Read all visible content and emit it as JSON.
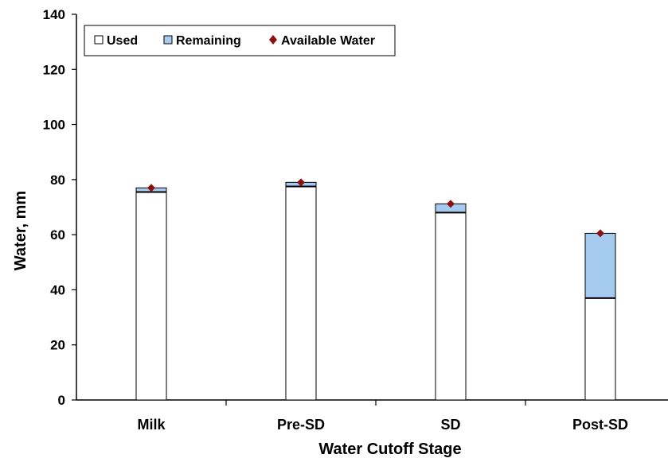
{
  "chart_data": {
    "type": "bar",
    "stacked": true,
    "title": "",
    "xlabel": "Water Cutoff Stage",
    "ylabel": "Water, mm",
    "ylim": [
      0,
      140
    ],
    "yticks": [
      0,
      20,
      40,
      60,
      80,
      100,
      120,
      140
    ],
    "categories": [
      "Milk",
      "Pre-SD",
      "SD",
      "Post-SD"
    ],
    "series": [
      {
        "name": "Used",
        "kind": "bar",
        "color": "#ffffff",
        "values": [
          75.5,
          77.5,
          68.0,
          37.0
        ]
      },
      {
        "name": "Remaining",
        "kind": "bar",
        "color": "#a6cbf0",
        "values": [
          1.5,
          1.5,
          3.2,
          23.5
        ]
      },
      {
        "name": "Available Water",
        "kind": "marker",
        "color": "#8b1010",
        "values": [
          77.0,
          79.0,
          71.2,
          60.5
        ]
      }
    ],
    "grid": false,
    "legend_position": "top-left"
  }
}
